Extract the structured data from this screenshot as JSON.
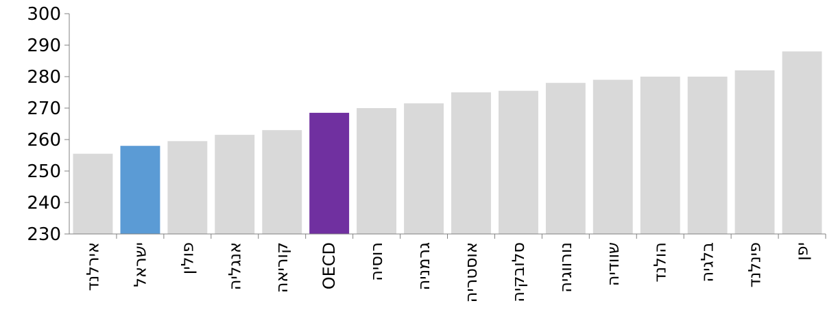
{
  "chart_data": {
    "type": "bar",
    "categories": [
      "אירלנד",
      "ישראל",
      "פולין",
      "אנגליה",
      "קוריאה",
      "OECD",
      "רוסיה",
      "גרמניה",
      "אוסטריה",
      "סלובקיה",
      "נורווגיה",
      "שוודיה",
      "הולנד",
      "בלגיה",
      "פינלנד",
      "יפן"
    ],
    "values": [
      255.5,
      258,
      259.5,
      261.5,
      263,
      268.5,
      270,
      271.5,
      275,
      275.5,
      278,
      279,
      280,
      280,
      282,
      288
    ],
    "colors": [
      "#d9d9d9",
      "#5b9bd5",
      "#d9d9d9",
      "#d9d9d9",
      "#d9d9d9",
      "#7030a0",
      "#d9d9d9",
      "#d9d9d9",
      "#d9d9d9",
      "#d9d9d9",
      "#d9d9d9",
      "#d9d9d9",
      "#d9d9d9",
      "#d9d9d9",
      "#d9d9d9",
      "#d9d9d9"
    ],
    "ylim": [
      230,
      300
    ],
    "yticks": [
      "230",
      "240",
      "250",
      "260",
      "270",
      "280",
      "290",
      "300"
    ],
    "grid": false
  }
}
